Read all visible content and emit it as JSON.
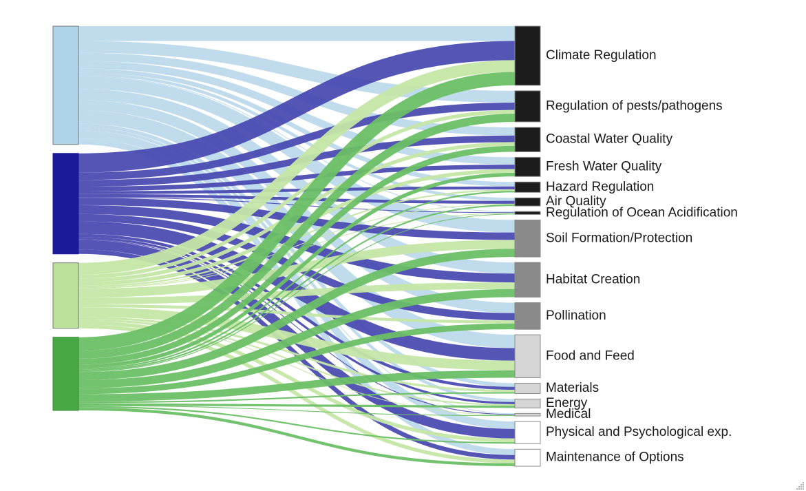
{
  "chart_data": {
    "type": "sankey",
    "sources": [
      {
        "id": "s1",
        "color": "#afd3e7",
        "stroke": "#777777"
      },
      {
        "id": "s2",
        "color": "#1b1b9a",
        "stroke": "#1b1b9a"
      },
      {
        "id": "s3",
        "color": "#bae19a",
        "stroke": "#777777"
      },
      {
        "id": "s4",
        "color": "#47a844",
        "stroke": "#3a8a37"
      }
    ],
    "link_colors": [
      "#bcd9eb",
      "#4747b0",
      "#c5e6a7",
      "#6cbf66"
    ],
    "targets": [
      {
        "label": "Climate Regulation",
        "color": "#1c1c1c"
      },
      {
        "label": "Regulation of pests/pathogens",
        "color": "#1c1c1c"
      },
      {
        "label": "Coastal Water Quality",
        "color": "#1c1c1c"
      },
      {
        "label": "Fresh Water Quality",
        "color": "#1c1c1c"
      },
      {
        "label": "Hazard Regulation",
        "color": "#1c1c1c"
      },
      {
        "label": "Air Quality",
        "color": "#1c1c1c"
      },
      {
        "label": "Regulation of Ocean Acidification",
        "color": "#1c1c1c"
      },
      {
        "label": "Soil Formation/Protection",
        "color": "#8a8a8a"
      },
      {
        "label": "Habitat Creation",
        "color": "#8a8a8a"
      },
      {
        "label": "Pollination",
        "color": "#8a8a8a"
      },
      {
        "label": "Food and Feed",
        "color": "#d6d6d6"
      },
      {
        "label": "Materials",
        "color": "#d6d6d6"
      },
      {
        "label": "Energy",
        "color": "#d6d6d6"
      },
      {
        "label": "Medical",
        "color": "#d6d6d6"
      },
      {
        "label": "Physical and Psychological exp.",
        "color": "#ffffff"
      },
      {
        "label": "Maintenance of Options",
        "color": "#ffffff"
      }
    ],
    "flows": [
      [
        20,
        26,
        16,
        18
      ],
      [
        16,
        10,
        5,
        11
      ],
      [
        11,
        9,
        5,
        8
      ],
      [
        10,
        6,
        5,
        5
      ],
      [
        6,
        4,
        2,
        2
      ],
      [
        4,
        4,
        1,
        2
      ],
      [
        1,
        1,
        1,
        1
      ],
      [
        17,
        10,
        12,
        11
      ],
      [
        15,
        12,
        9,
        11
      ],
      [
        14,
        10,
        4,
        8
      ],
      [
        18,
        17,
        13,
        10
      ],
      [
        5,
        4,
        3,
        2
      ],
      [
        4,
        3,
        2,
        3
      ],
      [
        1,
        1,
        0.5,
        1
      ],
      [
        10,
        13,
        5,
        2
      ],
      [
        8,
        6,
        5,
        4
      ]
    ]
  }
}
